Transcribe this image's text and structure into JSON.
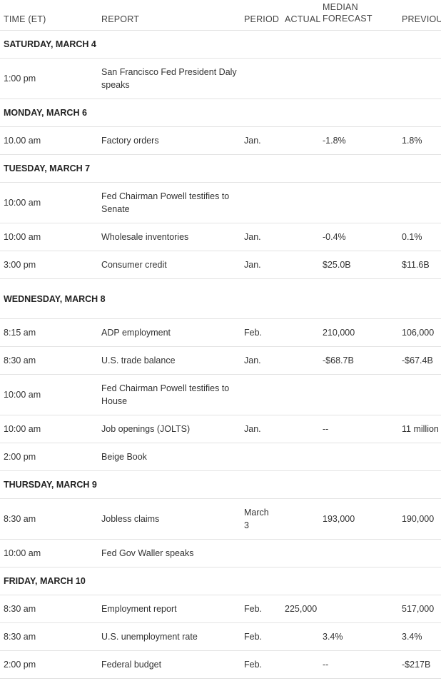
{
  "headers": {
    "time": "TIME (ET)",
    "report": "REPORT",
    "period": "PERIOD",
    "actual": "ACTUAL",
    "forecast": "MEDIAN FORECAST",
    "previous": "PREVIOUS"
  },
  "rows": [
    {
      "type": "day",
      "label": "SATURDAY, MARCH 4"
    },
    {
      "type": "event",
      "time": "1:00 pm",
      "report": "San Francisco Fed President Daly speaks",
      "period": "",
      "actual": "",
      "forecast": "",
      "previous": ""
    },
    {
      "type": "day",
      "label": "MONDAY, MARCH 6"
    },
    {
      "type": "event",
      "time": "10.00 am",
      "report": "Factory orders",
      "period": "Jan.",
      "actual": "",
      "forecast": "-1.8%",
      "previous": "1.8%"
    },
    {
      "type": "day",
      "label": "TUESDAY, MARCH 7"
    },
    {
      "type": "event",
      "time": "10:00 am",
      "report": "Fed Chairman Powell testifies to Senate",
      "period": "",
      "actual": "",
      "forecast": "",
      "previous": ""
    },
    {
      "type": "event",
      "time": "10:00 am",
      "report": "Wholesale inventories",
      "period": "Jan.",
      "actual": "",
      "forecast": "-0.4%",
      "previous": "0.1%"
    },
    {
      "type": "event",
      "time": "3:00 pm",
      "report": "Consumer credit",
      "period": "Jan.",
      "actual": "",
      "forecast": "$25.0B",
      "previous": "$11.6B"
    },
    {
      "type": "day",
      "label": "WEDNESDAY, MARCH 8"
    },
    {
      "type": "event",
      "time": "8:15 am",
      "report": "ADP employment",
      "period": "Feb.",
      "actual": "",
      "forecast": "210,000",
      "previous": "106,000"
    },
    {
      "type": "event",
      "time": "8:30 am",
      "report": "U.S. trade balance",
      "period": "Jan.",
      "actual": "",
      "forecast": "-$68.7B",
      "previous": "-$67.4B"
    },
    {
      "type": "event",
      "time": "10:00 am",
      "report": "Fed Chairman Powell testifies to House",
      "period": "",
      "actual": "",
      "forecast": "",
      "previous": ""
    },
    {
      "type": "event",
      "time": "10:00 am",
      "report": "Job openings (JOLTS)",
      "period": "Jan.",
      "actual": "",
      "forecast": "--",
      "previous": "11 million"
    },
    {
      "type": "event",
      "time": "2:00 pm",
      "report": "Beige Book",
      "period": "",
      "actual": "",
      "forecast": "",
      "previous": ""
    },
    {
      "type": "day",
      "label": "THURSDAY, MARCH 9"
    },
    {
      "type": "event",
      "time": "8:30 am",
      "report": "Jobless claims",
      "period": "March 3",
      "actual": "",
      "forecast": "193,000",
      "previous": "190,000"
    },
    {
      "type": "event",
      "time": "10:00 am",
      "report": "Fed Gov Waller speaks",
      "period": "",
      "actual": "",
      "forecast": "",
      "previous": ""
    },
    {
      "type": "day",
      "label": "FRIDAY, MARCH 10"
    },
    {
      "type": "event",
      "time": "8:30 am",
      "report": "Employment report",
      "period": "Feb.",
      "actual": "225,000",
      "forecast": "",
      "previous": "517,000"
    },
    {
      "type": "event",
      "time": "8:30 am",
      "report": "U.S. unemployment rate",
      "period": "Feb.",
      "actual": "",
      "forecast": "3.4%",
      "previous": "3.4%"
    },
    {
      "type": "event",
      "time": "2:00 pm",
      "report": "Federal budget",
      "period": "Feb.",
      "actual": "",
      "forecast": "--",
      "previous": "-$217B"
    }
  ]
}
